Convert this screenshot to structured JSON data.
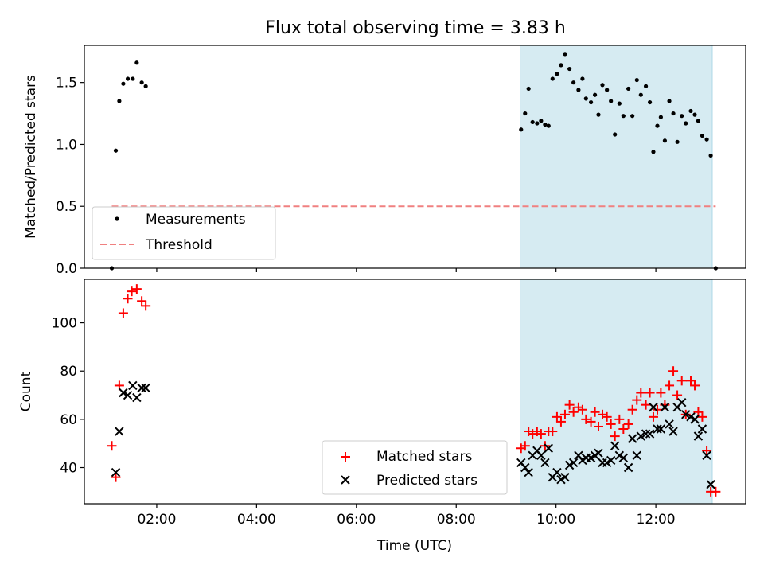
{
  "figure": {
    "title": "Flux total observing time = 3.83 h",
    "xlabel": "Time (UTC)"
  },
  "colors": {
    "shade": "#add8e6",
    "threshold": "#f08080",
    "matched": "#ff0000",
    "predicted": "#000000",
    "measurements": "#000000"
  },
  "chart_data": [
    {
      "type": "scatter",
      "ylabel": "Matched/Predicted stars",
      "xlim": [
        0.55,
        13.8
      ],
      "ylim": [
        0,
        1.8
      ],
      "yticks": [
        0.0,
        0.5,
        1.0,
        1.5
      ],
      "ytick_labels": [
        "0.0",
        "0.5",
        "1.0",
        "1.5"
      ],
      "xticks": [
        2,
        4,
        6,
        8,
        10,
        12
      ],
      "xtick_labels": [
        "",
        "",
        "",
        "",
        "",
        ""
      ],
      "grid": false,
      "legend": "lower-left",
      "shaded_span": [
        9.28,
        13.13
      ],
      "threshold": {
        "name": "Threshold",
        "y": 0.5,
        "x": [
          1.1,
          13.2
        ]
      },
      "series": [
        {
          "name": "Measurements",
          "points": [
            [
              1.1,
              0.0
            ],
            [
              1.18,
              0.95
            ],
            [
              1.25,
              1.35
            ],
            [
              1.33,
              1.49
            ],
            [
              1.42,
              1.53
            ],
            [
              1.52,
              1.53
            ],
            [
              1.6,
              1.66
            ],
            [
              1.7,
              1.5
            ],
            [
              1.78,
              1.47
            ],
            [
              9.3,
              1.12
            ],
            [
              9.38,
              1.25
            ],
            [
              9.45,
              1.45
            ],
            [
              9.53,
              1.18
            ],
            [
              9.62,
              1.17
            ],
            [
              9.7,
              1.19
            ],
            [
              9.78,
              1.16
            ],
            [
              9.85,
              1.15
            ],
            [
              9.93,
              1.53
            ],
            [
              10.02,
              1.57
            ],
            [
              10.1,
              1.64
            ],
            [
              10.18,
              1.73
            ],
            [
              10.27,
              1.61
            ],
            [
              10.35,
              1.5
            ],
            [
              10.45,
              1.44
            ],
            [
              10.53,
              1.53
            ],
            [
              10.6,
              1.37
            ],
            [
              10.7,
              1.34
            ],
            [
              10.78,
              1.4
            ],
            [
              10.85,
              1.24
            ],
            [
              10.93,
              1.48
            ],
            [
              11.02,
              1.44
            ],
            [
              11.1,
              1.35
            ],
            [
              11.18,
              1.08
            ],
            [
              11.27,
              1.33
            ],
            [
              11.35,
              1.23
            ],
            [
              11.45,
              1.45
            ],
            [
              11.53,
              1.23
            ],
            [
              11.62,
              1.52
            ],
            [
              11.7,
              1.4
            ],
            [
              11.8,
              1.47
            ],
            [
              11.88,
              1.34
            ],
            [
              11.95,
              0.94
            ],
            [
              12.03,
              1.15
            ],
            [
              12.1,
              1.22
            ],
            [
              12.18,
              1.03
            ],
            [
              12.27,
              1.35
            ],
            [
              12.35,
              1.25
            ],
            [
              12.43,
              1.02
            ],
            [
              12.52,
              1.23
            ],
            [
              12.6,
              1.17
            ],
            [
              12.7,
              1.27
            ],
            [
              12.78,
              1.24
            ],
            [
              12.85,
              1.19
            ],
            [
              12.93,
              1.07
            ],
            [
              13.02,
              1.04
            ],
            [
              13.1,
              0.91
            ],
            [
              13.2,
              0.0
            ]
          ]
        }
      ]
    },
    {
      "type": "scatter",
      "ylabel": "Count",
      "xlim": [
        0.55,
        13.8
      ],
      "ylim": [
        25,
        118
      ],
      "yticks": [
        40,
        60,
        80,
        100
      ],
      "ytick_labels": [
        "40",
        "60",
        "80",
        "100"
      ],
      "xticks": [
        2,
        4,
        6,
        8,
        10,
        12
      ],
      "xtick_labels": [
        "02:00",
        "04:00",
        "06:00",
        "08:00",
        "10:00",
        "12:00"
      ],
      "grid": false,
      "legend": "lower-center",
      "shaded_span": [
        9.28,
        13.13
      ],
      "series": [
        {
          "name": "Matched stars",
          "marker": "plus",
          "points": [
            [
              1.1,
              49
            ],
            [
              1.18,
              36
            ],
            [
              1.25,
              74
            ],
            [
              1.33,
              104
            ],
            [
              1.42,
              110
            ],
            [
              1.5,
              113
            ],
            [
              1.6,
              114
            ],
            [
              1.7,
              109
            ],
            [
              1.78,
              107
            ],
            [
              9.3,
              48
            ],
            [
              9.38,
              49
            ],
            [
              9.45,
              55
            ],
            [
              9.53,
              54
            ],
            [
              9.62,
              55
            ],
            [
              9.7,
              54
            ],
            [
              9.78,
              49
            ],
            [
              9.85,
              55
            ],
            [
              9.93,
              55
            ],
            [
              10.02,
              61
            ],
            [
              10.1,
              59
            ],
            [
              10.18,
              62
            ],
            [
              10.27,
              66
            ],
            [
              10.35,
              63
            ],
            [
              10.45,
              65
            ],
            [
              10.53,
              64
            ],
            [
              10.6,
              60
            ],
            [
              10.7,
              59
            ],
            [
              10.78,
              63
            ],
            [
              10.85,
              57
            ],
            [
              10.93,
              62
            ],
            [
              11.02,
              61
            ],
            [
              11.1,
              58
            ],
            [
              11.18,
              53
            ],
            [
              11.27,
              60
            ],
            [
              11.35,
              56
            ],
            [
              11.45,
              58
            ],
            [
              11.53,
              64
            ],
            [
              11.62,
              68
            ],
            [
              11.7,
              71
            ],
            [
              11.8,
              66
            ],
            [
              11.88,
              71
            ],
            [
              11.95,
              61
            ],
            [
              12.03,
              64
            ],
            [
              12.1,
              71
            ],
            [
              12.18,
              66
            ],
            [
              12.27,
              74
            ],
            [
              12.35,
              80
            ],
            [
              12.43,
              70
            ],
            [
              12.52,
              76
            ],
            [
              12.6,
              62
            ],
            [
              12.7,
              76
            ],
            [
              12.78,
              74
            ],
            [
              12.85,
              63
            ],
            [
              12.93,
              61
            ],
            [
              13.02,
              47
            ],
            [
              13.1,
              30
            ],
            [
              13.2,
              30
            ]
          ]
        },
        {
          "name": "Predicted stars",
          "marker": "x",
          "points": [
            [
              1.18,
              38
            ],
            [
              1.25,
              55
            ],
            [
              1.33,
              71
            ],
            [
              1.42,
              70
            ],
            [
              1.52,
              74
            ],
            [
              1.6,
              69
            ],
            [
              1.7,
              73
            ],
            [
              1.78,
              73
            ],
            [
              9.3,
              42
            ],
            [
              9.38,
              40
            ],
            [
              9.45,
              38
            ],
            [
              9.53,
              45
            ],
            [
              9.62,
              47
            ],
            [
              9.7,
              45
            ],
            [
              9.78,
              42
            ],
            [
              9.85,
              48
            ],
            [
              9.93,
              36
            ],
            [
              10.02,
              38
            ],
            [
              10.1,
              35
            ],
            [
              10.18,
              36
            ],
            [
              10.27,
              41
            ],
            [
              10.35,
              42
            ],
            [
              10.45,
              45
            ],
            [
              10.53,
              43
            ],
            [
              10.6,
              44
            ],
            [
              10.7,
              44
            ],
            [
              10.78,
              45
            ],
            [
              10.85,
              46
            ],
            [
              10.93,
              42
            ],
            [
              11.02,
              42
            ],
            [
              11.1,
              43
            ],
            [
              11.18,
              49
            ],
            [
              11.27,
              45
            ],
            [
              11.35,
              44
            ],
            [
              11.45,
              40
            ],
            [
              11.53,
              52
            ],
            [
              11.62,
              45
            ],
            [
              11.7,
              53
            ],
            [
              11.8,
              54
            ],
            [
              11.88,
              54
            ],
            [
              11.95,
              65
            ],
            [
              12.03,
              56
            ],
            [
              12.1,
              56
            ],
            [
              12.18,
              65
            ],
            [
              12.27,
              58
            ],
            [
              12.35,
              55
            ],
            [
              12.43,
              65
            ],
            [
              12.52,
              67
            ],
            [
              12.6,
              62
            ],
            [
              12.7,
              61
            ],
            [
              12.78,
              60
            ],
            [
              12.85,
              53
            ],
            [
              12.93,
              56
            ],
            [
              13.02,
              45
            ],
            [
              13.1,
              33
            ]
          ]
        }
      ]
    }
  ]
}
